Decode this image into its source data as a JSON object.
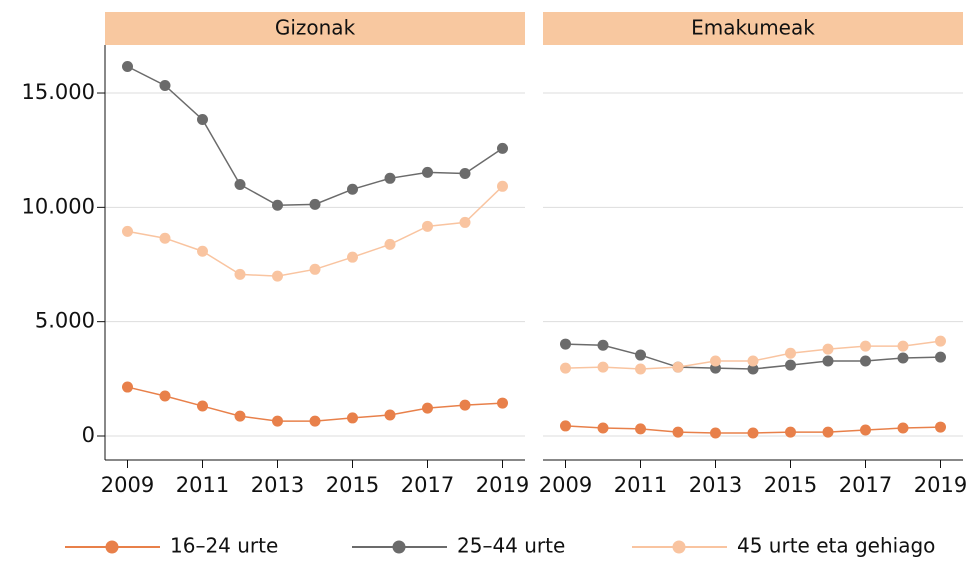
{
  "chart_data": {
    "type": "line",
    "x": [
      2009,
      2010,
      2011,
      2012,
      2013,
      2014,
      2015,
      2016,
      2017,
      2018,
      2019
    ],
    "xlim": [
      2008.4,
      2019.6
    ],
    "xticks": [
      2009,
      2011,
      2013,
      2015,
      2017,
      2019
    ],
    "ylim": [
      -1050,
      17100
    ],
    "yticks": [
      0,
      {
        "value": 5000,
        "label": "5.000"
      },
      {
        "value": 10000,
        "label": "10.000"
      },
      {
        "value": 15000,
        "label": "15.000"
      }
    ],
    "grid": true,
    "panels": [
      "Gizonak",
      "Emakumeak"
    ],
    "series": [
      {
        "name": "16–24 urte",
        "color": "#e8804a",
        "values": [
          [
            2140,
            1750,
            1310,
            870,
            650,
            650,
            790,
            920,
            1220,
            1350,
            1440
          ],
          [
            440,
            350,
            310,
            170,
            130,
            130,
            170,
            170,
            260,
            350,
            390
          ]
        ]
      },
      {
        "name": "25–44 urte",
        "color": "#6b6b6b",
        "values": [
          [
            16160,
            15330,
            13840,
            11000,
            10090,
            10130,
            10790,
            11270,
            11530,
            11480,
            12580
          ],
          [
            4020,
            3970,
            3540,
            3010,
            2970,
            2930,
            3100,
            3280,
            3280,
            3410,
            3450
          ]
        ]
      },
      {
        "name": "45 urte eta gehiago",
        "color": "#f9c4a0",
        "values": [
          [
            8950,
            8650,
            8080,
            7070,
            6990,
            7290,
            7820,
            8380,
            9170,
            9340,
            10920
          ],
          [
            2970,
            3010,
            2930,
            3010,
            3280,
            3280,
            3620,
            3800,
            3930,
            3930,
            4150
          ]
        ]
      }
    ]
  }
}
